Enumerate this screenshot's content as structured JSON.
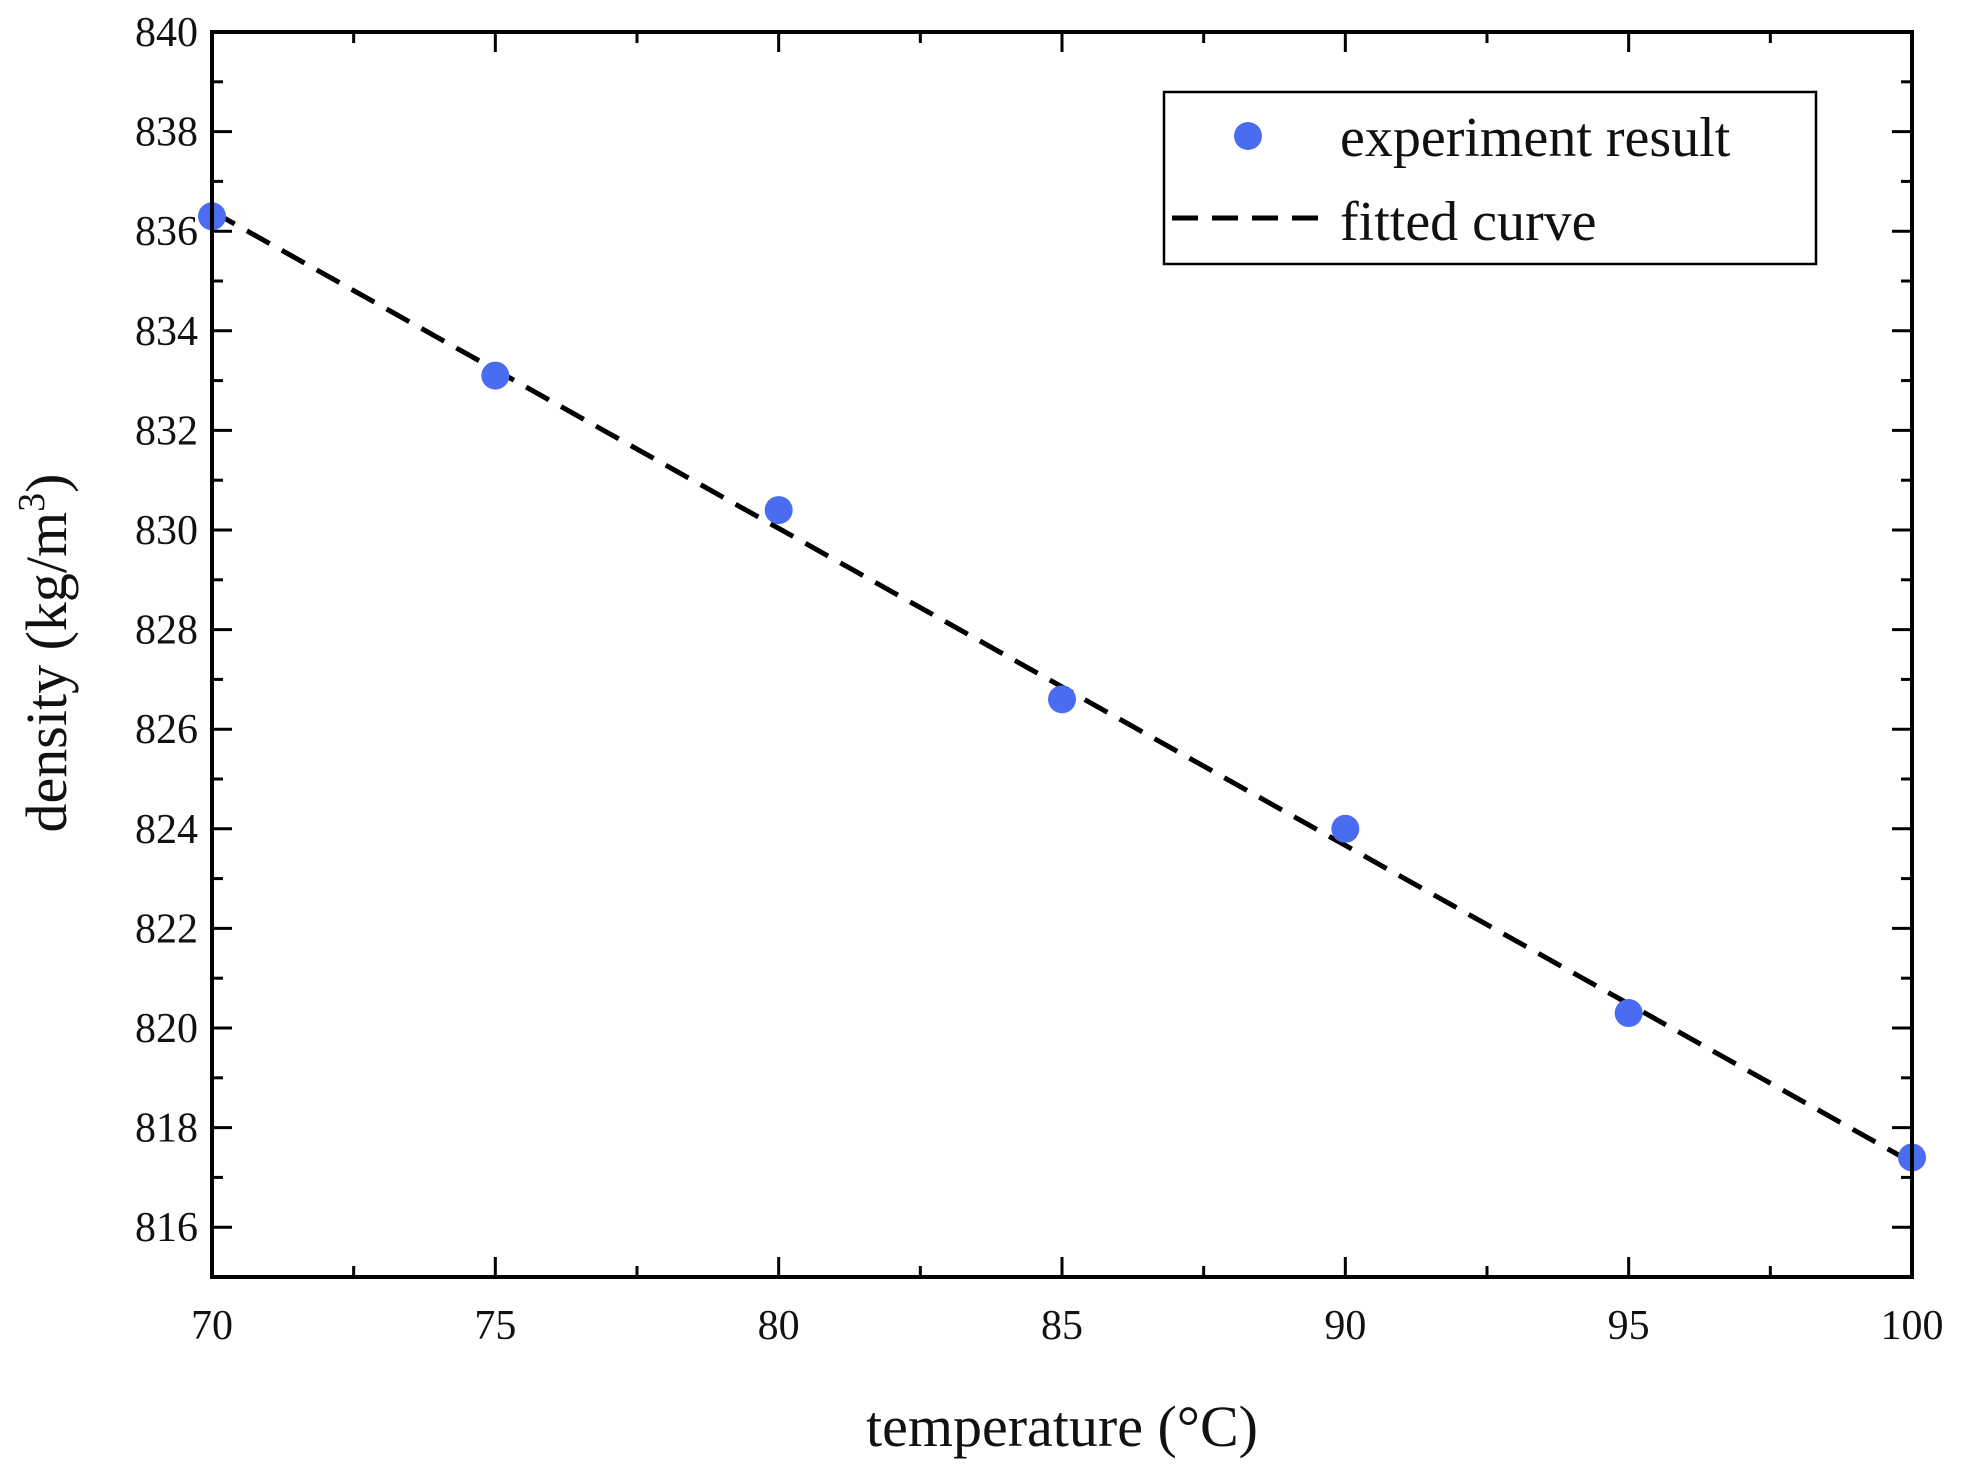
{
  "chart_data": {
    "type": "scatter",
    "xlabel": "temperature (°C)",
    "ylabel": "density (kg/m",
    "ylabel_sup": "3",
    "ylabel_close": ")",
    "xlim": [
      70,
      100
    ],
    "ylim": [
      815,
      840
    ],
    "xticks": [
      70,
      75,
      80,
      85,
      90,
      95,
      100
    ],
    "yticks": [
      816,
      818,
      820,
      822,
      824,
      826,
      828,
      830,
      832,
      834,
      836,
      838,
      840
    ],
    "xtick_labels": [
      "70",
      "75",
      "80",
      "85",
      "90",
      "95",
      "100"
    ],
    "ytick_labels": [
      "816",
      "818",
      "820",
      "822",
      "824",
      "826",
      "828",
      "830",
      "832",
      "834",
      "836",
      "838",
      "840"
    ],
    "legend_position": "top-right",
    "series": [
      {
        "name": "experiment result",
        "kind": "points",
        "color": "#4a6cf0",
        "x": [
          70,
          75,
          80,
          85,
          90,
          95,
          100
        ],
        "y": [
          836.3,
          833.1,
          830.4,
          826.6,
          824.0,
          820.3,
          817.4
        ]
      },
      {
        "name": "fitted curve",
        "kind": "dashed-line",
        "color": "#000000",
        "x": [
          70,
          100
        ],
        "y": [
          836.4,
          817.3
        ]
      }
    ]
  }
}
